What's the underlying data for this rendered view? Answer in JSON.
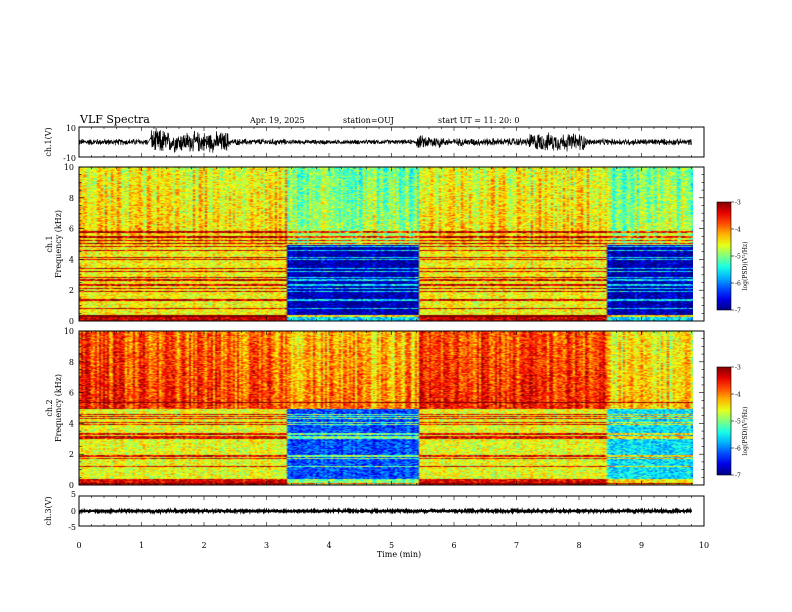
{
  "header": {
    "title": "VLF Spectra",
    "date": "Apr. 19, 2025",
    "station": "station=OUJ",
    "start": "start  UT  =   11: 20: 0"
  },
  "chart_data": [
    {
      "type": "line",
      "id": "ch1-waveform",
      "ylabel": "ch.1(V)",
      "ylim": [
        -10,
        10
      ],
      "y_ticks": [
        "10",
        "-10"
      ],
      "xlim": [
        0,
        10
      ],
      "envelope": [
        {
          "t": [
            0.0,
            1.1
          ],
          "amp": 2.5
        },
        {
          "t": [
            1.15,
            1.4
          ],
          "amp": 10
        },
        {
          "t": [
            1.4,
            2.4
          ],
          "amp": 8
        },
        {
          "t": [
            2.4,
            3.3
          ],
          "amp": 2.5
        },
        {
          "t": [
            3.3,
            5.4
          ],
          "amp": 1.8
        },
        {
          "t": [
            5.4,
            5.8
          ],
          "amp": 5
        },
        {
          "t": [
            5.8,
            7.2
          ],
          "amp": 3
        },
        {
          "t": [
            7.2,
            8.1
          ],
          "amp": 7
        },
        {
          "t": [
            8.1,
            9.8
          ],
          "amp": 2.5
        }
      ]
    },
    {
      "type": "heatmap",
      "id": "ch1-spectrogram",
      "ylabel": "Frequency (kHz)",
      "channel": "ch.1",
      "xlim": [
        0,
        10
      ],
      "ylim": [
        0,
        10
      ],
      "y_ticks": [
        "0",
        "2",
        "4",
        "6",
        "8",
        "10"
      ],
      "colorbar": {
        "label": "log(PSD)(V²/Hz)",
        "range": [
          -7,
          -3
        ],
        "ticks": [
          "-3",
          "-4",
          "-5",
          "-6",
          "-7"
        ]
      },
      "segments": [
        {
          "t": [
            0.0,
            1.1
          ],
          "low_level": -4.5,
          "high_level": -4.3
        },
        {
          "t": [
            1.1,
            2.4
          ],
          "low_level": -4.5,
          "high_level": -4.3
        },
        {
          "t": [
            2.4,
            3.3
          ],
          "low_level": -4.5,
          "high_level": -4.3
        },
        {
          "t": [
            3.3,
            5.4
          ],
          "low_level": -6.8,
          "high_level": -4.8
        },
        {
          "t": [
            5.4,
            8.4
          ],
          "low_level": -4.5,
          "high_level": -4.3
        },
        {
          "t": [
            8.4,
            9.8
          ],
          "low_level": -6.8,
          "high_level": -4.8
        }
      ]
    },
    {
      "type": "heatmap",
      "id": "ch2-spectrogram",
      "ylabel": "Frequency (kHz)",
      "channel": "ch.2",
      "xlim": [
        0,
        10
      ],
      "ylim": [
        0,
        10
      ],
      "y_ticks": [
        "0",
        "2",
        "4",
        "6",
        "8",
        "10"
      ],
      "colorbar": {
        "label": "log(PSD)(V²/Hz)",
        "range": [
          -7,
          -3
        ],
        "ticks": [
          "-3",
          "-4",
          "-5",
          "-6",
          "-7"
        ]
      },
      "segments": [
        {
          "t": [
            0.0,
            1.1
          ],
          "low_level": -4.6,
          "high_level": -3.6
        },
        {
          "t": [
            1.1,
            2.4
          ],
          "low_level": -4.6,
          "high_level": -3.7
        },
        {
          "t": [
            2.4,
            3.3
          ],
          "low_level": -4.6,
          "high_level": -3.8
        },
        {
          "t": [
            3.3,
            5.4
          ],
          "low_level": -6.2,
          "high_level": -4.0
        },
        {
          "t": [
            5.4,
            8.4
          ],
          "low_level": -4.6,
          "high_level": -3.6
        },
        {
          "t": [
            8.4,
            9.8
          ],
          "low_level": -5.6,
          "high_level": -4.3
        }
      ]
    },
    {
      "type": "line",
      "id": "ch3-waveform",
      "ylabel": "ch.3(V)",
      "ylim": [
        -5,
        5
      ],
      "y_ticks": [
        "5",
        "0",
        "-5"
      ],
      "xlim": [
        0,
        10
      ],
      "xlabel": "Time (min)",
      "x_ticks": [
        "0",
        "1",
        "2",
        "3",
        "4",
        "5",
        "6",
        "7",
        "8",
        "9",
        "10"
      ],
      "envelope": [
        {
          "t": [
            0.0,
            9.8
          ],
          "amp": 0.4
        }
      ]
    }
  ],
  "colors": {
    "axis": "#000000",
    "background": "#ffffff"
  }
}
